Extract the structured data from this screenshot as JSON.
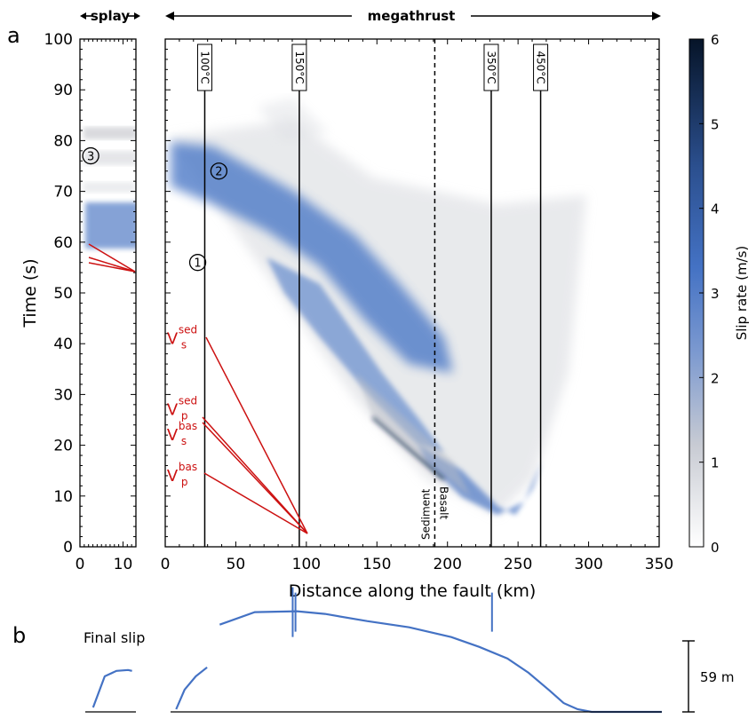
{
  "panel_labels": {
    "a": "a",
    "b": "b"
  },
  "header": {
    "splay": "splay",
    "megathrust": "megathrust"
  },
  "colorbar": {
    "label": "Slip rate (m/s)",
    "ticks": [
      "0",
      "1",
      "2",
      "3",
      "4",
      "5",
      "6"
    ],
    "ylim": [
      0,
      6
    ]
  },
  "final_slip": {
    "label": "Final slip",
    "scale_label": "59 m"
  },
  "colors": {
    "slip_blue": "#4472c4",
    "red_annotations": "#cc1111",
    "gray": "#9a9a9a"
  },
  "chart_data": [
    {
      "type": "heatmap",
      "panel": "splay",
      "xlabel": "",
      "ylabel": "Time (s)",
      "xlim": [
        0,
        13
      ],
      "ylim": [
        0,
        100
      ],
      "xticks": [
        "0",
        "10"
      ],
      "yticks": [
        "0",
        "10",
        "20",
        "30",
        "40",
        "50",
        "60",
        "70",
        "80",
        "90",
        "100"
      ],
      "markers": [
        {
          "label": "3",
          "x": 2.5,
          "y": 77
        }
      ]
    },
    {
      "type": "heatmap",
      "panel": "megathrust",
      "xlabel": "Distance along the fault (km)",
      "ylabel": "",
      "xlim": [
        0,
        350
      ],
      "ylim": [
        0,
        100
      ],
      "xticks": [
        "0",
        "50",
        "100",
        "150",
        "200",
        "250",
        "300",
        "350"
      ],
      "isotherms": [
        {
          "label": "100°C",
          "x": 28
        },
        {
          "label": "150°C",
          "x": 95
        },
        {
          "label": "350°C",
          "x": 231
        },
        {
          "label": "450°C",
          "x": 266
        }
      ],
      "boundary": {
        "x": 191,
        "left_label": "Sediment",
        "right_label": "Basalt"
      },
      "markers": [
        {
          "label": "1",
          "x": 23,
          "y": 56
        },
        {
          "label": "2",
          "x": 38,
          "y": 74
        }
      ],
      "wave_speeds": [
        {
          "v": "V",
          "sup": "sed",
          "sub": "s",
          "x": 10,
          "y": 41
        },
        {
          "v": "V",
          "sup": "sed",
          "sub": "p",
          "x": 10,
          "y": 27
        },
        {
          "v": "V",
          "sup": "bas",
          "sub": "s",
          "x": 10,
          "y": 22
        },
        {
          "v": "V",
          "sup": "bas",
          "sub": "p",
          "x": 10,
          "y": 14
        }
      ]
    },
    {
      "type": "line",
      "panel": "final_slip",
      "series": [
        {
          "x": [
            2,
            5,
            8,
            11,
            12
          ],
          "y": [
            5,
            40,
            46,
            47,
            46
          ]
        },
        {
          "x": [
            4,
            10,
            18,
            26,
            28,
            35,
            60,
            90,
            110,
            140,
            170,
            200,
            220,
            240,
            255,
            270,
            280,
            290,
            300,
            320,
            350
          ],
          "y": [
            3,
            25,
            40,
            50,
            0,
            98,
            112,
            113,
            110,
            102,
            95,
            84,
            73,
            60,
            44,
            24,
            10,
            3,
            0,
            0,
            0
          ]
        }
      ]
    }
  ]
}
